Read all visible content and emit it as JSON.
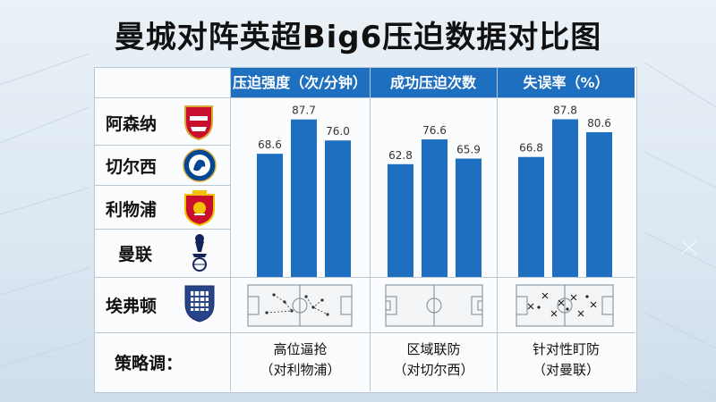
{
  "title": "曼城对阵英超Big6压迫数据对比图",
  "headers": [
    "压迫强度（次/分钟）",
    "成功压迫次数",
    "失误率（%）"
  ],
  "teams": [
    {
      "name": "阿森纳",
      "icon": "arsenal-crest-icon"
    },
    {
      "name": "切尔西",
      "icon": "chelsea-crest-icon"
    },
    {
      "name": "利物浦",
      "icon": "liverpool-crest-icon"
    },
    {
      "name": "曼联",
      "icon": "tottenham-crest-icon"
    },
    {
      "name": "埃弗顿",
      "icon": "everton-crest-icon"
    }
  ],
  "strategy": {
    "label": "策略调：",
    "cells": [
      {
        "line1": "高位逼抢",
        "line2": "（对利物浦）"
      },
      {
        "line1": "区域联防",
        "line2": "（对切尔西）"
      },
      {
        "line1": "针对性盯防",
        "line2": "（对曼联）"
      }
    ]
  },
  "colors": {
    "header": "#1f6fc1",
    "bar": "#1f6fc1",
    "grid": "#b9c6d3"
  },
  "chart_data": [
    {
      "type": "bar",
      "title": "压迫强度（次/分钟）",
      "values": [
        68.6,
        87.7,
        76.0
      ],
      "labels": [
        "68.6",
        "87.7",
        "76.0"
      ],
      "ylim": [
        0,
        100
      ]
    },
    {
      "type": "bar",
      "title": "成功压迫次数",
      "values": [
        62.8,
        76.6,
        65.9
      ],
      "labels": [
        "62.8",
        "76.6",
        "65.9"
      ],
      "ylim": [
        0,
        100
      ]
    },
    {
      "type": "bar",
      "title": "失误率（%）",
      "values": [
        66.8,
        87.8,
        80.6
      ],
      "labels": [
        "66.8",
        "87.8",
        "80.6"
      ],
      "ylim": [
        0,
        100
      ]
    }
  ]
}
